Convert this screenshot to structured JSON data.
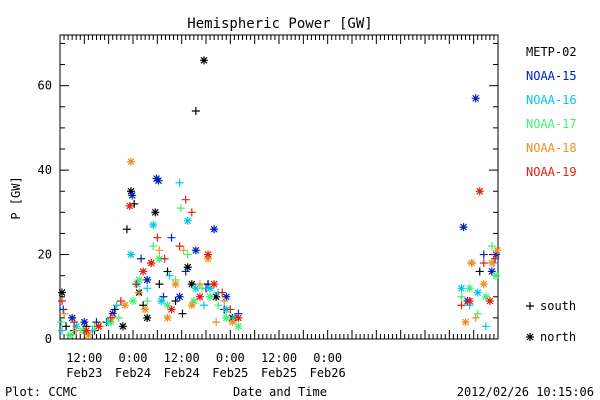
{
  "chart_data": {
    "type": "scatter",
    "title": "Hemispheric Power [GW]",
    "ylabel": "P [GW]",
    "xlabel": "Date and Time",
    "footer_left": "Plot: CCMC",
    "footer_right": "2012/02/26 10:15:06",
    "ylim": [
      0,
      72
    ],
    "yticks": [
      0,
      20,
      40,
      60
    ],
    "xlim_hours": [
      0,
      108
    ],
    "xticks": [
      {
        "hour": 6,
        "line1": "12:00",
        "line2": "Feb23"
      },
      {
        "hour": 18,
        "line1": "0:00",
        "line2": "Feb24"
      },
      {
        "hour": 30,
        "line1": "12:00",
        "line2": "Feb24"
      },
      {
        "hour": 42,
        "line1": "0:00",
        "line2": "Feb25"
      },
      {
        "hour": 54,
        "line1": "12:00",
        "line2": "Feb25"
      },
      {
        "hour": 66,
        "line1": "0:00",
        "line2": "Feb26"
      }
    ],
    "legend": {
      "placement": "right",
      "series_labels": [
        "METP-02",
        "NOAA-15",
        "NOAA-16",
        "NOAA-17",
        "NOAA-18",
        "NOAA-19"
      ],
      "marker_labels": [
        "south",
        "north"
      ]
    },
    "series": [
      {
        "name": "METP-02",
        "color": "#000000",
        "points": [
          {
            "x": 0.5,
            "y": 11,
            "m": "north"
          },
          {
            "x": 1.5,
            "y": 3,
            "m": "south"
          },
          {
            "x": 3.5,
            "y": 2,
            "m": "south"
          },
          {
            "x": 6.5,
            "y": 3,
            "m": "south"
          },
          {
            "x": 8.5,
            "y": 2,
            "m": "south"
          },
          {
            "x": 11.5,
            "y": 4,
            "m": "south"
          },
          {
            "x": 13.5,
            "y": 7,
            "m": "south"
          },
          {
            "x": 15.5,
            "y": 3,
            "m": "north"
          },
          {
            "x": 16.5,
            "y": 26,
            "m": "south"
          },
          {
            "x": 17.5,
            "y": 35,
            "m": "north"
          },
          {
            "x": 18.3,
            "y": 32,
            "m": "south"
          },
          {
            "x": 19.5,
            "y": 11,
            "m": "north"
          },
          {
            "x": 20.5,
            "y": 8,
            "m": "south"
          },
          {
            "x": 21.5,
            "y": 5,
            "m": "north"
          },
          {
            "x": 23.5,
            "y": 30,
            "m": "north"
          },
          {
            "x": 24.5,
            "y": 13,
            "m": "south"
          },
          {
            "x": 26.5,
            "y": 16,
            "m": "south"
          },
          {
            "x": 28.5,
            "y": 9,
            "m": "south"
          },
          {
            "x": 30.2,
            "y": 6,
            "m": "south"
          },
          {
            "x": 31.5,
            "y": 17,
            "m": "north"
          },
          {
            "x": 32.5,
            "y": 13,
            "m": "north"
          },
          {
            "x": 33.5,
            "y": 54,
            "m": "south"
          },
          {
            "x": 35.5,
            "y": 66,
            "m": "north"
          },
          {
            "x": 36.5,
            "y": 13,
            "m": "south"
          },
          {
            "x": 38.5,
            "y": 10,
            "m": "north"
          },
          {
            "x": 40.5,
            "y": 7,
            "m": "south"
          },
          {
            "x": 42.5,
            "y": 5,
            "m": "north"
          },
          {
            "x": 101.5,
            "y": 18,
            "m": "south"
          },
          {
            "x": 103.5,
            "y": 16,
            "m": "south"
          }
        ]
      },
      {
        "name": "NOAA-15",
        "color": "#0020c0",
        "points": [
          {
            "x": 0.8,
            "y": 7,
            "m": "south"
          },
          {
            "x": 3,
            "y": 5,
            "m": "north"
          },
          {
            "x": 6,
            "y": 4,
            "m": "north"
          },
          {
            "x": 9,
            "y": 4,
            "m": "south"
          },
          {
            "x": 13,
            "y": 6,
            "m": "north"
          },
          {
            "x": 17.8,
            "y": 34,
            "m": "north"
          },
          {
            "x": 20,
            "y": 19,
            "m": "south"
          },
          {
            "x": 21.5,
            "y": 14,
            "m": "north"
          },
          {
            "x": 23.8,
            "y": 38,
            "m": "north"
          },
          {
            "x": 24.3,
            "y": 37.5,
            "m": "north"
          },
          {
            "x": 25.5,
            "y": 10,
            "m": "south"
          },
          {
            "x": 27.5,
            "y": 24,
            "m": "south"
          },
          {
            "x": 29.5,
            "y": 10,
            "m": "north"
          },
          {
            "x": 31,
            "y": 16,
            "m": "south"
          },
          {
            "x": 33.5,
            "y": 21,
            "m": "north"
          },
          {
            "x": 36,
            "y": 12,
            "m": "south"
          },
          {
            "x": 38,
            "y": 26,
            "m": "north"
          },
          {
            "x": 41,
            "y": 10,
            "m": "north"
          },
          {
            "x": 44,
            "y": 6,
            "m": "south"
          },
          {
            "x": 99.5,
            "y": 26.5,
            "m": "north"
          },
          {
            "x": 100.5,
            "y": 9,
            "m": "north"
          },
          {
            "x": 102.5,
            "y": 57,
            "m": "north"
          },
          {
            "x": 104.5,
            "y": 20,
            "m": "south"
          },
          {
            "x": 106.5,
            "y": 16,
            "m": "north"
          },
          {
            "x": 107.5,
            "y": 20,
            "m": "north"
          }
        ]
      },
      {
        "name": "NOAA-16",
        "color": "#00c8e8",
        "points": [
          {
            "x": 0.5,
            "y": 2,
            "m": "south"
          },
          {
            "x": 4,
            "y": 3,
            "m": "north"
          },
          {
            "x": 8,
            "y": 2,
            "m": "south"
          },
          {
            "x": 12,
            "y": 4,
            "m": "north"
          },
          {
            "x": 14,
            "y": 8,
            "m": "south"
          },
          {
            "x": 17.5,
            "y": 20,
            "m": "north"
          },
          {
            "x": 19,
            "y": 13,
            "m": "north"
          },
          {
            "x": 21.5,
            "y": 12,
            "m": "south"
          },
          {
            "x": 23,
            "y": 27,
            "m": "north"
          },
          {
            "x": 25,
            "y": 9,
            "m": "north"
          },
          {
            "x": 27,
            "y": 15,
            "m": "south"
          },
          {
            "x": 29.5,
            "y": 37,
            "m": "south"
          },
          {
            "x": 31.5,
            "y": 28,
            "m": "north"
          },
          {
            "x": 33.5,
            "y": 12,
            "m": "north"
          },
          {
            "x": 35.5,
            "y": 8,
            "m": "south"
          },
          {
            "x": 37,
            "y": 12,
            "m": "north"
          },
          {
            "x": 39,
            "y": 11,
            "m": "south"
          },
          {
            "x": 41,
            "y": 7,
            "m": "north"
          },
          {
            "x": 43,
            "y": 5,
            "m": "north"
          },
          {
            "x": 99,
            "y": 12,
            "m": "north"
          },
          {
            "x": 101,
            "y": 8,
            "m": "south"
          },
          {
            "x": 103,
            "y": 11,
            "m": "north"
          },
          {
            "x": 105,
            "y": 3,
            "m": "south"
          },
          {
            "x": 107,
            "y": 18,
            "m": "south"
          }
        ]
      },
      {
        "name": "NOAA-17",
        "color": "#40f070",
        "points": [
          {
            "x": 0.3,
            "y": 4,
            "m": "south"
          },
          {
            "x": 2.5,
            "y": 1,
            "m": "north"
          },
          {
            "x": 5.5,
            "y": 2,
            "m": "north"
          },
          {
            "x": 8.5,
            "y": 3,
            "m": "south"
          },
          {
            "x": 12.5,
            "y": 4,
            "m": "north"
          },
          {
            "x": 14.5,
            "y": 5,
            "m": "south"
          },
          {
            "x": 18,
            "y": 9,
            "m": "north"
          },
          {
            "x": 19.5,
            "y": 14,
            "m": "north"
          },
          {
            "x": 21.5,
            "y": 9,
            "m": "south"
          },
          {
            "x": 23,
            "y": 22,
            "m": "south"
          },
          {
            "x": 24.5,
            "y": 19,
            "m": "north"
          },
          {
            "x": 26.5,
            "y": 8,
            "m": "north"
          },
          {
            "x": 28.5,
            "y": 14,
            "m": "south"
          },
          {
            "x": 29.8,
            "y": 31,
            "m": "south"
          },
          {
            "x": 31.5,
            "y": 20,
            "m": "south"
          },
          {
            "x": 33,
            "y": 9,
            "m": "north"
          },
          {
            "x": 35,
            "y": 12,
            "m": "south"
          },
          {
            "x": 37,
            "y": 10,
            "m": "north"
          },
          {
            "x": 39,
            "y": 8,
            "m": "south"
          },
          {
            "x": 41,
            "y": 5,
            "m": "north"
          },
          {
            "x": 44,
            "y": 3,
            "m": "north"
          },
          {
            "x": 99,
            "y": 10,
            "m": "south"
          },
          {
            "x": 101,
            "y": 12,
            "m": "north"
          },
          {
            "x": 103,
            "y": 6,
            "m": "south"
          },
          {
            "x": 105,
            "y": 10,
            "m": "north"
          },
          {
            "x": 106.5,
            "y": 22,
            "m": "south"
          },
          {
            "x": 107.5,
            "y": 15,
            "m": "north"
          }
        ]
      },
      {
        "name": "NOAA-18",
        "color": "#f09020",
        "points": [
          {
            "x": 1,
            "y": 6,
            "m": "south"
          },
          {
            "x": 4,
            "y": 2,
            "m": "south"
          },
          {
            "x": 7,
            "y": 1,
            "m": "north"
          },
          {
            "x": 10,
            "y": 3,
            "m": "south"
          },
          {
            "x": 13,
            "y": 5,
            "m": "south"
          },
          {
            "x": 16,
            "y": 8,
            "m": "north"
          },
          {
            "x": 17.5,
            "y": 42,
            "m": "north"
          },
          {
            "x": 19.5,
            "y": 11,
            "m": "south"
          },
          {
            "x": 21,
            "y": 7,
            "m": "north"
          },
          {
            "x": 22.5,
            "y": 18,
            "m": "north"
          },
          {
            "x": 24.5,
            "y": 21,
            "m": "south"
          },
          {
            "x": 26.5,
            "y": 5,
            "m": "north"
          },
          {
            "x": 28.5,
            "y": 13,
            "m": "north"
          },
          {
            "x": 30.5,
            "y": 21,
            "m": "south"
          },
          {
            "x": 32.5,
            "y": 8,
            "m": "north"
          },
          {
            "x": 34.5,
            "y": 13,
            "m": "south"
          },
          {
            "x": 36.5,
            "y": 19,
            "m": "north"
          },
          {
            "x": 38.5,
            "y": 4,
            "m": "south"
          },
          {
            "x": 40.5,
            "y": 9,
            "m": "south"
          },
          {
            "x": 42.5,
            "y": 4,
            "m": "north"
          },
          {
            "x": 100,
            "y": 4,
            "m": "north"
          },
          {
            "x": 101.5,
            "y": 18,
            "m": "north"
          },
          {
            "x": 102.5,
            "y": 5,
            "m": "south"
          },
          {
            "x": 104.5,
            "y": 13,
            "m": "north"
          },
          {
            "x": 106.5,
            "y": 18,
            "m": "north"
          },
          {
            "x": 107.8,
            "y": 21,
            "m": "north"
          }
        ]
      },
      {
        "name": "NOAA-19",
        "color": "#e02010",
        "points": [
          {
            "x": 0.5,
            "y": 9,
            "m": "south"
          },
          {
            "x": 3.5,
            "y": 4,
            "m": "south"
          },
          {
            "x": 6.5,
            "y": 2,
            "m": "north"
          },
          {
            "x": 9.5,
            "y": 3,
            "m": "north"
          },
          {
            "x": 12.5,
            "y": 5,
            "m": "south"
          },
          {
            "x": 15,
            "y": 9,
            "m": "south"
          },
          {
            "x": 17.2,
            "y": 31.5,
            "m": "north"
          },
          {
            "x": 18.8,
            "y": 13,
            "m": "south"
          },
          {
            "x": 20.5,
            "y": 16,
            "m": "north"
          },
          {
            "x": 22.5,
            "y": 18,
            "m": "north"
          },
          {
            "x": 24,
            "y": 24,
            "m": "south"
          },
          {
            "x": 25.8,
            "y": 19,
            "m": "south"
          },
          {
            "x": 27.5,
            "y": 7,
            "m": "north"
          },
          {
            "x": 29.5,
            "y": 22,
            "m": "south"
          },
          {
            "x": 31,
            "y": 33,
            "m": "south"
          },
          {
            "x": 32.5,
            "y": 30,
            "m": "south"
          },
          {
            "x": 34.5,
            "y": 10,
            "m": "north"
          },
          {
            "x": 36.5,
            "y": 20,
            "m": "north"
          },
          {
            "x": 38,
            "y": 13,
            "m": "north"
          },
          {
            "x": 40,
            "y": 11,
            "m": "south"
          },
          {
            "x": 42,
            "y": 7,
            "m": "south"
          },
          {
            "x": 44,
            "y": 5,
            "m": "north"
          },
          {
            "x": 99,
            "y": 8,
            "m": "south"
          },
          {
            "x": 101,
            "y": 9,
            "m": "north"
          },
          {
            "x": 103.5,
            "y": 35,
            "m": "north"
          },
          {
            "x": 104.5,
            "y": 18,
            "m": "south"
          },
          {
            "x": 106,
            "y": 9,
            "m": "north"
          },
          {
            "x": 107.3,
            "y": 19,
            "m": "south"
          }
        ]
      }
    ]
  }
}
